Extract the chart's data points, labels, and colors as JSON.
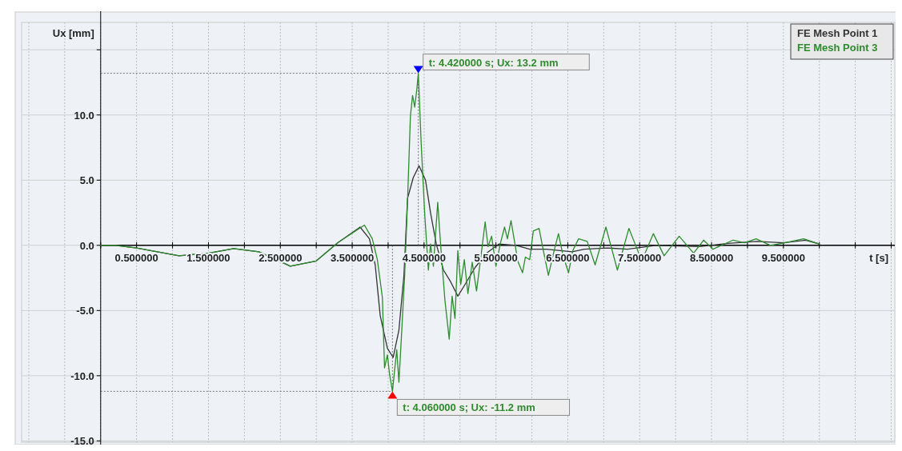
{
  "chart_data": {
    "type": "line",
    "xlabel": "t [s]",
    "ylabel": "Ux [mm]",
    "xlim": [
      -1.1,
      11.05
    ],
    "ylim": [
      -15.1,
      17.1
    ],
    "xticks": [
      {
        "value": -1,
        "label": null
      },
      {
        "value": -0.5,
        "label": null
      },
      {
        "value": 0,
        "label": null
      },
      {
        "value": 0.5,
        "label": "0.500000"
      },
      {
        "value": 1,
        "label": null
      },
      {
        "value": 1.5,
        "label": "1.500000"
      },
      {
        "value": 2,
        "label": null
      },
      {
        "value": 2.5,
        "label": "2.500000"
      },
      {
        "value": 3,
        "label": null
      },
      {
        "value": 3.5,
        "label": "3.500000"
      },
      {
        "value": 4,
        "label": null
      },
      {
        "value": 4.5,
        "label": "4.500000"
      },
      {
        "value": 5,
        "label": null
      },
      {
        "value": 5.5,
        "label": "5.500000"
      },
      {
        "value": 6,
        "label": null
      },
      {
        "value": 6.5,
        "label": "6.500000"
      },
      {
        "value": 7,
        "label": null
      },
      {
        "value": 7.5,
        "label": "7.500000"
      },
      {
        "value": 8,
        "label": null
      },
      {
        "value": 8.5,
        "label": "8.500000"
      },
      {
        "value": 9,
        "label": null
      },
      {
        "value": 9.5,
        "label": "9.500000"
      },
      {
        "value": 10,
        "label": null
      },
      {
        "value": 10.5,
        "label": null
      },
      {
        "value": 11,
        "label": null
      }
    ],
    "yticks": [
      {
        "value": -15,
        "label": "-15.0"
      },
      {
        "value": -10,
        "label": "-10.0"
      },
      {
        "value": -5,
        "label": "-5.0"
      },
      {
        "value": 0,
        "label": "0.0"
      },
      {
        "value": 5,
        "label": "5.0"
      },
      {
        "value": 10,
        "label": "10.0"
      },
      {
        "value": 15,
        "label": null
      }
    ],
    "grid": true,
    "legend": "top right",
    "series": [
      {
        "name": "FE Mesh Point 1",
        "color": "#333333",
        "x": [
          0,
          0.21,
          0.5,
          1.09,
          1.5,
          1.85,
          2.2,
          2.64,
          3.0,
          3.3,
          3.61,
          3.74,
          3.82,
          3.89,
          3.99,
          4.07,
          4.15,
          4.22,
          4.27,
          4.35,
          4.43,
          4.52,
          4.59,
          4.67,
          4.77,
          4.87,
          4.97,
          5.07,
          5.21,
          5.37,
          5.54,
          5.78,
          5.97,
          6.2,
          6.56,
          6.73,
          7.05,
          7.33,
          7.73,
          8.33,
          8.73,
          9.13,
          9.5,
          9.81,
          10.0
        ],
        "values": [
          0,
          0,
          -0.2,
          -0.8,
          -0.6,
          -0.25,
          -0.5,
          -1.6,
          -1.2,
          0.2,
          1.4,
          0.5,
          -1.5,
          -5.4,
          -7.9,
          -8.6,
          -6.5,
          -2.3,
          3.6,
          5.2,
          6.1,
          5.0,
          2.5,
          0.1,
          -1.9,
          -2.8,
          -3.9,
          -3.0,
          -1.7,
          -0.6,
          0.1,
          0,
          -0.3,
          -0.3,
          -0.5,
          -0.3,
          -0.2,
          -0.3,
          0,
          -0.1,
          0.15,
          0.3,
          0.2,
          0.4,
          0.1
        ]
      },
      {
        "name": "FE Mesh Point 3",
        "color": "#2e8b2e",
        "x": [
          0,
          0.21,
          0.5,
          1.09,
          1.5,
          1.85,
          2.2,
          2.64,
          3.0,
          3.3,
          3.67,
          3.78,
          3.85,
          3.92,
          3.95,
          3.99,
          4.02,
          4.06,
          4.12,
          4.15,
          4.19,
          4.23,
          4.27,
          4.31,
          4.34,
          4.37,
          4.4,
          4.42,
          4.46,
          4.51,
          4.56,
          4.59,
          4.63,
          4.69,
          4.73,
          4.79,
          4.85,
          4.89,
          4.93,
          4.97,
          5.01,
          5.06,
          5.11,
          5.17,
          5.23,
          5.29,
          5.35,
          5.39,
          5.44,
          5.5,
          5.56,
          5.62,
          5.66,
          5.71,
          5.78,
          5.81,
          5.87,
          5.91,
          5.97,
          6.02,
          6.1,
          6.16,
          6.23,
          6.31,
          6.37,
          6.43,
          6.51,
          6.57,
          6.65,
          6.77,
          6.88,
          7.03,
          7.19,
          7.35,
          7.53,
          7.69,
          7.84,
          8.05,
          8.25,
          8.39,
          8.52,
          8.8,
          8.96,
          9.12,
          9.32,
          9.52,
          9.78,
          10.0
        ],
        "values": [
          0,
          0,
          -0.2,
          -0.8,
          -0.6,
          -0.25,
          -0.5,
          -1.6,
          -1.2,
          0.2,
          1.55,
          0.5,
          -1.1,
          -4.0,
          -9.4,
          -8.4,
          -9.9,
          -11.2,
          -8.0,
          -10.5,
          -6.5,
          -2.3,
          3.4,
          9.9,
          11.5,
          10.6,
          12.0,
          13.2,
          7.8,
          2.3,
          -1.9,
          0.1,
          -1.6,
          3.3,
          0.1,
          -4.2,
          -7.2,
          -3.9,
          -5.6,
          -0.4,
          -3.0,
          -1.1,
          -3.7,
          -1.3,
          -3.5,
          -0.9,
          1.8,
          -0.1,
          0.7,
          -1.6,
          0.1,
          1.4,
          0.5,
          1.9,
          -0.4,
          -1.3,
          -2.1,
          -0.9,
          -1.1,
          1.1,
          1.3,
          -0.4,
          -2.3,
          -0.4,
          0.9,
          -0.7,
          -2.1,
          -0.4,
          0.5,
          0.3,
          -1.5,
          1.4,
          -1.9,
          1.3,
          -1.2,
          0.9,
          -0.8,
          0.7,
          -0.6,
          0.4,
          -0.3,
          0.4,
          0.2,
          0.5,
          0,
          0.2,
          0.5,
          0.1
        ]
      }
    ],
    "annotations": [
      {
        "text": "t: 4.420000 s; Ux: 13.2 mm",
        "x": 4.42,
        "y": 13.2
      },
      {
        "text": "t: 4.060000 s; Ux: -11.2 mm",
        "x": 4.06,
        "y": -11.2
      }
    ]
  }
}
